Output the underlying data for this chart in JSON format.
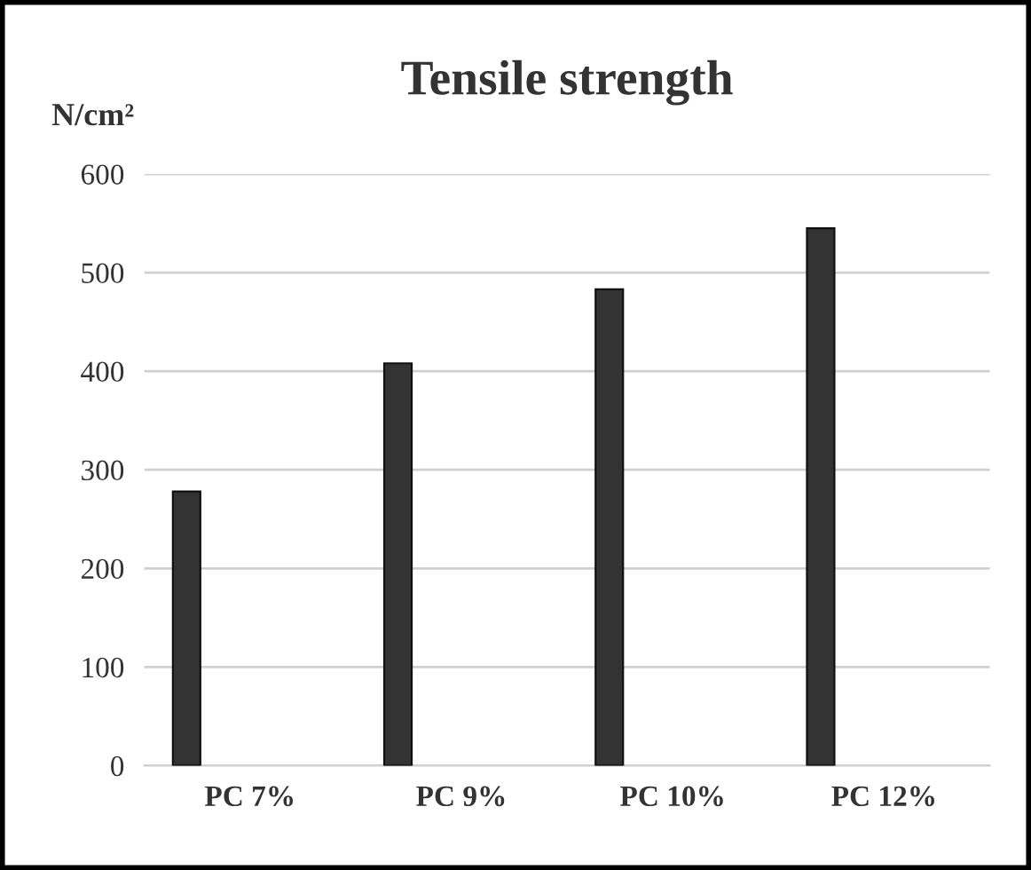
{
  "chart_data": {
    "type": "bar",
    "title": "Tensile strength",
    "ylabel": "N/cm²",
    "categories": [
      "PC 7%",
      "PC 9%",
      "PC 10%",
      "PC 12%"
    ],
    "values": [
      278,
      408,
      483,
      545
    ],
    "color": "#333333",
    "ylim": [
      0,
      600
    ],
    "yticks": [
      0,
      100,
      200,
      300,
      400,
      500,
      600
    ],
    "grid": "y"
  }
}
